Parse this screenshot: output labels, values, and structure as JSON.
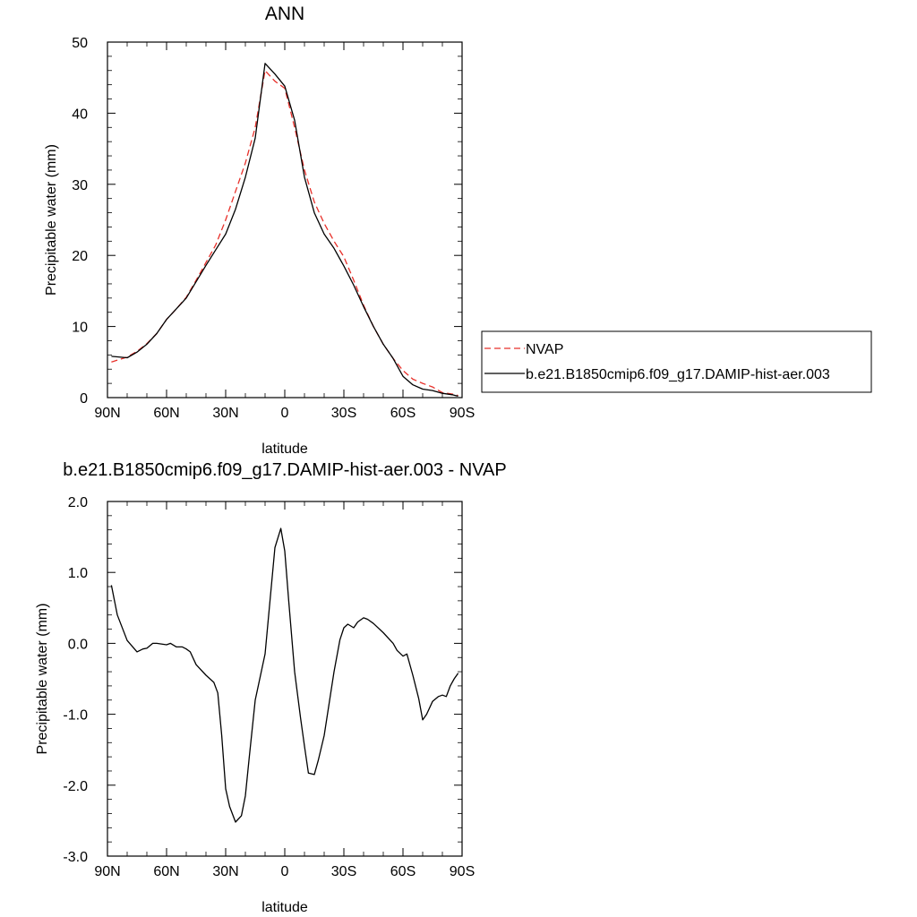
{
  "chart_data": [
    {
      "type": "line",
      "title": "ANN",
      "xlabel": "latitude",
      "ylabel": "Precipitable water (mm)",
      "xlim": [
        90,
        -90
      ],
      "ylim": [
        0,
        50
      ],
      "xticks": [
        90,
        60,
        30,
        0,
        -30,
        -60,
        -90
      ],
      "xtick_labels": [
        "90N",
        "60N",
        "30N",
        "0",
        "30S",
        "60S",
        "90S"
      ],
      "yticks": [
        0,
        10,
        20,
        30,
        40,
        50
      ],
      "ytick_labels": [
        "0",
        "10",
        "20",
        "30",
        "40",
        "50"
      ],
      "legend_position": "outside-right",
      "series": [
        {
          "name": "NVAP",
          "color": "#e8302a",
          "dash": true,
          "x": [
            88,
            80,
            75,
            70,
            65,
            60,
            55,
            50,
            45,
            40,
            35,
            30,
            25,
            20,
            15,
            10,
            5,
            0,
            -5,
            -10,
            -15,
            -20,
            -25,
            -30,
            -35,
            -40,
            -45,
            -50,
            -55,
            -60,
            -65,
            -70,
            -75,
            -80,
            -85,
            -88
          ],
          "y": [
            5.0,
            5.7,
            6.5,
            7.6,
            9.0,
            11.0,
            12.5,
            14.1,
            16.5,
            19.0,
            21.5,
            25.0,
            29.0,
            33.0,
            38.0,
            46.0,
            44.5,
            43.5,
            38.0,
            32.0,
            27.5,
            24.5,
            22.0,
            19.8,
            16.5,
            13.0,
            10.0,
            7.5,
            5.5,
            3.8,
            2.6,
            2.0,
            1.5,
            0.7,
            0.5,
            0.3
          ]
        },
        {
          "name": "b.e21.B1850cmip6.f09_g17.DAMIP-hist-aer.003",
          "color": "#000000",
          "dash": false,
          "x": [
            88,
            80,
            75,
            70,
            65,
            60,
            55,
            50,
            45,
            40,
            35,
            30,
            25,
            20,
            15,
            10,
            5,
            0,
            -5,
            -10,
            -15,
            -20,
            -25,
            -30,
            -35,
            -40,
            -45,
            -50,
            -55,
            -60,
            -65,
            -70,
            -75,
            -80,
            -85,
            -88
          ],
          "y": [
            5.8,
            5.6,
            6.4,
            7.5,
            9.0,
            11.0,
            12.5,
            14.0,
            16.3,
            18.6,
            20.8,
            23.0,
            26.5,
            31.0,
            36.5,
            47.0,
            45.5,
            43.8,
            39.0,
            31.0,
            26.0,
            23.0,
            21.0,
            18.5,
            15.8,
            12.8,
            10.0,
            7.5,
            5.5,
            3.0,
            1.8,
            1.2,
            1.0,
            0.6,
            0.4,
            0.2
          ]
        }
      ]
    },
    {
      "type": "line",
      "title": "b.e21.B1850cmip6.f09_g17.DAMIP-hist-aer.003 - NVAP",
      "xlabel": "latitude",
      "ylabel": "Precipitable water (mm)",
      "xlim": [
        90,
        -90
      ],
      "ylim": [
        -3.0,
        2.0
      ],
      "xticks": [
        90,
        60,
        30,
        0,
        -30,
        -60,
        -90
      ],
      "xtick_labels": [
        "90N",
        "60N",
        "30N",
        "0",
        "30S",
        "60S",
        "90S"
      ],
      "yticks": [
        2.0,
        1.0,
        0.0,
        -1.0,
        -2.0,
        -3.0
      ],
      "ytick_labels": [
        "2.0",
        "1.0",
        "0.0",
        "-1.0",
        "-2.0",
        "-3.0"
      ],
      "series": [
        {
          "color": "#000000",
          "x": [
            88,
            85,
            80,
            75,
            72,
            70,
            67,
            65,
            60,
            58,
            55,
            52,
            50,
            48,
            45,
            40,
            36,
            34,
            32,
            30,
            28,
            25,
            22,
            20,
            18,
            15,
            10,
            5,
            2,
            0,
            -2,
            -5,
            -8,
            -10,
            -12,
            -15,
            -17,
            -20,
            -25,
            -28,
            -30,
            -32,
            -35,
            -37,
            -40,
            -42,
            -45,
            -50,
            -55,
            -57,
            -60,
            -62,
            -65,
            -68,
            -70,
            -72,
            -75,
            -78,
            -80,
            -82,
            -84,
            -86,
            -88
          ],
          "y": [
            0.82,
            0.4,
            0.04,
            -0.12,
            -0.08,
            -0.07,
            0.0,
            0.0,
            -0.02,
            0.0,
            -0.05,
            -0.05,
            -0.08,
            -0.12,
            -0.3,
            -0.45,
            -0.55,
            -0.7,
            -1.3,
            -2.05,
            -2.3,
            -2.52,
            -2.43,
            -2.15,
            -1.6,
            -0.8,
            -0.15,
            1.35,
            1.62,
            1.3,
            0.6,
            -0.4,
            -1.05,
            -1.45,
            -1.83,
            -1.85,
            -1.65,
            -1.3,
            -0.4,
            0.05,
            0.22,
            0.27,
            0.22,
            0.3,
            0.36,
            0.34,
            0.28,
            0.15,
            0.0,
            -0.1,
            -0.18,
            -0.15,
            -0.45,
            -0.78,
            -1.08,
            -1.0,
            -0.82,
            -0.75,
            -0.73,
            -0.75,
            -0.6,
            -0.5,
            -0.42
          ]
        }
      ]
    }
  ]
}
